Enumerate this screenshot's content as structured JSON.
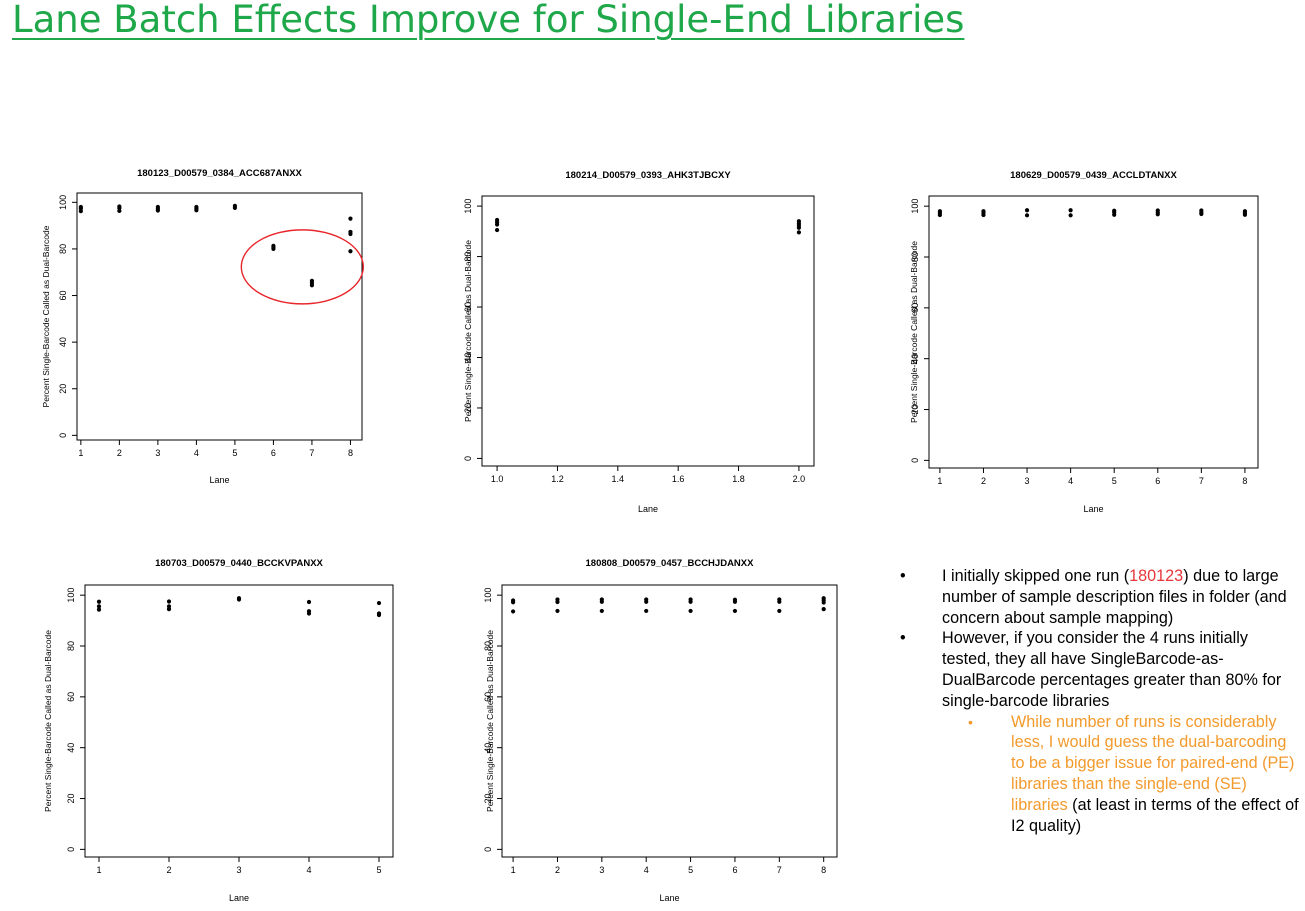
{
  "title": "Lane Batch Effects Improve for Single-End Libraries",
  "colors": {
    "title": "#1ea84a",
    "highlight_red": "#e8373b",
    "highlight_orange": "#f39a2d",
    "annotation_circle": "#e8262b"
  },
  "chart_data": [
    {
      "type": "scatter",
      "title": "180123_D00579_0384_ACC687ANXX",
      "xlabel": "Lane",
      "ylabel": "Percent Single-Barcode Called as Dual-Barcode",
      "xlim": [
        0.9,
        8.3
      ],
      "ylim": [
        -2,
        104
      ],
      "xticks": [
        1,
        2,
        3,
        4,
        5,
        6,
        7,
        8
      ],
      "yticks": [
        0,
        20,
        40,
        60,
        80,
        100
      ],
      "points": [
        [
          1,
          98
        ],
        [
          1,
          97.3
        ],
        [
          1,
          96.2
        ],
        [
          2,
          98.2
        ],
        [
          2,
          97.5
        ],
        [
          2,
          96.3
        ],
        [
          3,
          98
        ],
        [
          3,
          97.2
        ],
        [
          3,
          96.5
        ],
        [
          4,
          98
        ],
        [
          4,
          97.3
        ],
        [
          4,
          96.6
        ],
        [
          5,
          98.5
        ],
        [
          5,
          97.6
        ],
        [
          6,
          81.3
        ],
        [
          6,
          80.6
        ],
        [
          6,
          80
        ],
        [
          7,
          66.3
        ],
        [
          7,
          65.4
        ],
        [
          7,
          64.4
        ],
        [
          8,
          93
        ],
        [
          8,
          87.3
        ],
        [
          8,
          86.4
        ],
        [
          8,
          79
        ]
      ],
      "annotation": "red-circle-lanes-6-8"
    },
    {
      "type": "scatter",
      "title": "180214_D00579_0393_AHK3TJBCXY",
      "xlabel": "Lane",
      "ylabel": "Percent Single-Barcode Called as Dual-Barcode",
      "xlim": [
        0.95,
        2.05
      ],
      "ylim": [
        -3,
        104
      ],
      "xticks": [
        1.0,
        1.2,
        1.4,
        1.6,
        1.8,
        2.0
      ],
      "yticks": [
        0,
        20,
        40,
        60,
        80,
        100
      ],
      "points": [
        [
          1,
          94.5
        ],
        [
          1,
          93.6
        ],
        [
          1,
          92.7
        ],
        [
          1,
          90.5
        ],
        [
          2,
          94
        ],
        [
          2,
          93.1
        ],
        [
          2,
          92.3
        ],
        [
          2,
          91.4
        ],
        [
          2,
          89.6
        ]
      ]
    },
    {
      "type": "scatter",
      "title": "180629_D00579_0439_ACCLDTANXX",
      "xlabel": "Lane",
      "ylabel": "Percent Single-Barcode Called as Dual-Barcode",
      "xlim": [
        0.75,
        8.3
      ],
      "ylim": [
        -3,
        104
      ],
      "xticks": [
        1,
        2,
        3,
        4,
        5,
        6,
        7,
        8
      ],
      "yticks": [
        0,
        20,
        40,
        60,
        80,
        100
      ],
      "points": [
        [
          1,
          98
        ],
        [
          1,
          97.3
        ],
        [
          1,
          96.5
        ],
        [
          2,
          98
        ],
        [
          2,
          97.3
        ],
        [
          2,
          96.5
        ],
        [
          3,
          98.4
        ],
        [
          3,
          96.4
        ],
        [
          4,
          98.4
        ],
        [
          4,
          96.4
        ],
        [
          5,
          98.2
        ],
        [
          5,
          97.5
        ],
        [
          5,
          96.6
        ],
        [
          6,
          98.3
        ],
        [
          6,
          97.5
        ],
        [
          6,
          96.8
        ],
        [
          7,
          98.3
        ],
        [
          7,
          97.5
        ],
        [
          7,
          96.9
        ],
        [
          8,
          98
        ],
        [
          8,
          97.3
        ],
        [
          8,
          96.6
        ]
      ]
    },
    {
      "type": "scatter",
      "title": "180703_D00579_0440_BCCKVPANXX",
      "xlabel": "Lane",
      "ylabel": "Percent Single-Barcode Called as Dual-Barcode",
      "xlim": [
        0.8,
        5.2
      ],
      "ylim": [
        -3,
        104
      ],
      "xticks": [
        1,
        2,
        3,
        4,
        5
      ],
      "yticks": [
        0,
        20,
        40,
        60,
        80,
        100
      ],
      "points": [
        [
          1,
          97.4
        ],
        [
          1,
          95.6
        ],
        [
          1,
          94.3
        ],
        [
          2,
          97.5
        ],
        [
          2,
          95.6
        ],
        [
          2,
          94.5
        ],
        [
          3,
          98.8
        ],
        [
          3,
          98.3
        ],
        [
          4,
          97.3
        ],
        [
          4,
          93.7
        ],
        [
          4,
          92.8
        ],
        [
          5,
          96.9
        ],
        [
          5,
          92.8
        ],
        [
          5,
          92.2
        ]
      ]
    },
    {
      "type": "scatter",
      "title": "180808_D00579_0457_BCCHJDANXX",
      "xlabel": "Lane",
      "ylabel": "Percent Single-Barcode Called as Dual-Barcode",
      "xlim": [
        0.75,
        8.3
      ],
      "ylim": [
        -3,
        104
      ],
      "xticks": [
        1,
        2,
        3,
        4,
        5,
        6,
        7,
        8
      ],
      "yticks": [
        0,
        20,
        40,
        60,
        80,
        100
      ],
      "points": [
        [
          1,
          97.9
        ],
        [
          1,
          97.2
        ],
        [
          1,
          93.6
        ],
        [
          2,
          98.3
        ],
        [
          2,
          97.3
        ],
        [
          2,
          93.8
        ],
        [
          3,
          98.3
        ],
        [
          3,
          97.4
        ],
        [
          3,
          93.8
        ],
        [
          4,
          98.3
        ],
        [
          4,
          97.4
        ],
        [
          4,
          93.8
        ],
        [
          5,
          98.3
        ],
        [
          5,
          97.4
        ],
        [
          5,
          93.8
        ],
        [
          6,
          98.2
        ],
        [
          6,
          97.4
        ],
        [
          6,
          93.8
        ],
        [
          7,
          98.3
        ],
        [
          7,
          97.4
        ],
        [
          7,
          93.8
        ],
        [
          8,
          98.8
        ],
        [
          8,
          98
        ],
        [
          8,
          97.1
        ],
        [
          8,
          94.5
        ]
      ]
    }
  ],
  "notes": {
    "bullet1_pre": "I initially skipped one run (",
    "bullet1_run": "180123",
    "bullet1_post": ") due to large number of sample description files in folder (and concern about sample mapping)",
    "bullet2": "However, if you consider the 4 runs initially tested, they all have SingleBarcode-as-DualBarcode percentages greater than 80% for single-barcode libraries",
    "sub_bullet_highlight": "While number of runs is considerably less, I would guess the dual-barcoding to be a bigger issue for paired-end (PE) libraries than the single-end (SE) libraries",
    "sub_bullet_rest": " (at least in terms of the effect of I2 quality)"
  }
}
